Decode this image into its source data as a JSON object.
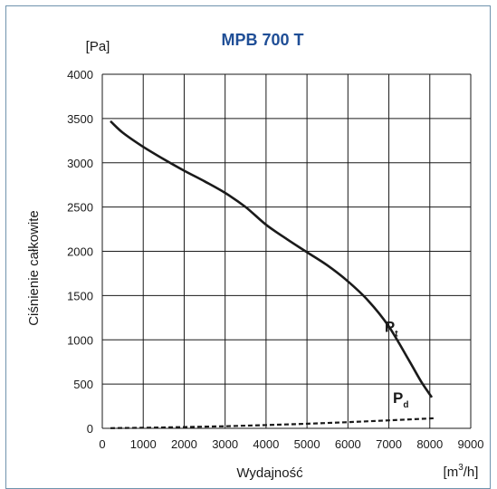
{
  "colors": {
    "title": "#1f4e96",
    "frame": "#6f93ad",
    "curve": "#1a1a1a"
  },
  "chart_data": {
    "type": "line",
    "title": "MPB 700 T",
    "xlabel": "Wydajność",
    "ylabel": "Ciśnienie całkowite",
    "x_unit_main": "[m",
    "x_unit_sup": "3",
    "x_unit_end": "/h]",
    "y_unit": "[Pa]",
    "xlim": [
      0,
      9000
    ],
    "ylim": [
      0,
      4000
    ],
    "x_ticks": [
      "0",
      "1000",
      "2000",
      "3000",
      "4000",
      "5000",
      "6000",
      "7000",
      "8000",
      "9000"
    ],
    "y_ticks": [
      "0",
      "500",
      "1000",
      "1500",
      "2000",
      "2500",
      "3000",
      "3500",
      "4000"
    ],
    "grid": true,
    "series": [
      {
        "name": "Pt",
        "label_main": "P",
        "label_sub": "t",
        "style": "solid",
        "x": [
          200,
          500,
          1000,
          1500,
          2000,
          2500,
          3000,
          3500,
          4000,
          4500,
          5000,
          5500,
          6000,
          6500,
          7000,
          7500,
          7800,
          8050
        ],
        "y": [
          3470,
          3340,
          3180,
          3040,
          2910,
          2790,
          2660,
          2500,
          2300,
          2140,
          1990,
          1840,
          1660,
          1440,
          1150,
          760,
          520,
          350
        ]
      },
      {
        "name": "Pd",
        "label_main": "P",
        "label_sub": "d",
        "style": "dashed",
        "x": [
          200,
          1000,
          2000,
          3000,
          4000,
          5000,
          6000,
          7000,
          8000,
          8050
        ],
        "y": [
          2,
          6,
          14,
          24,
          37,
          52,
          70,
          90,
          112,
          115
        ]
      }
    ]
  }
}
